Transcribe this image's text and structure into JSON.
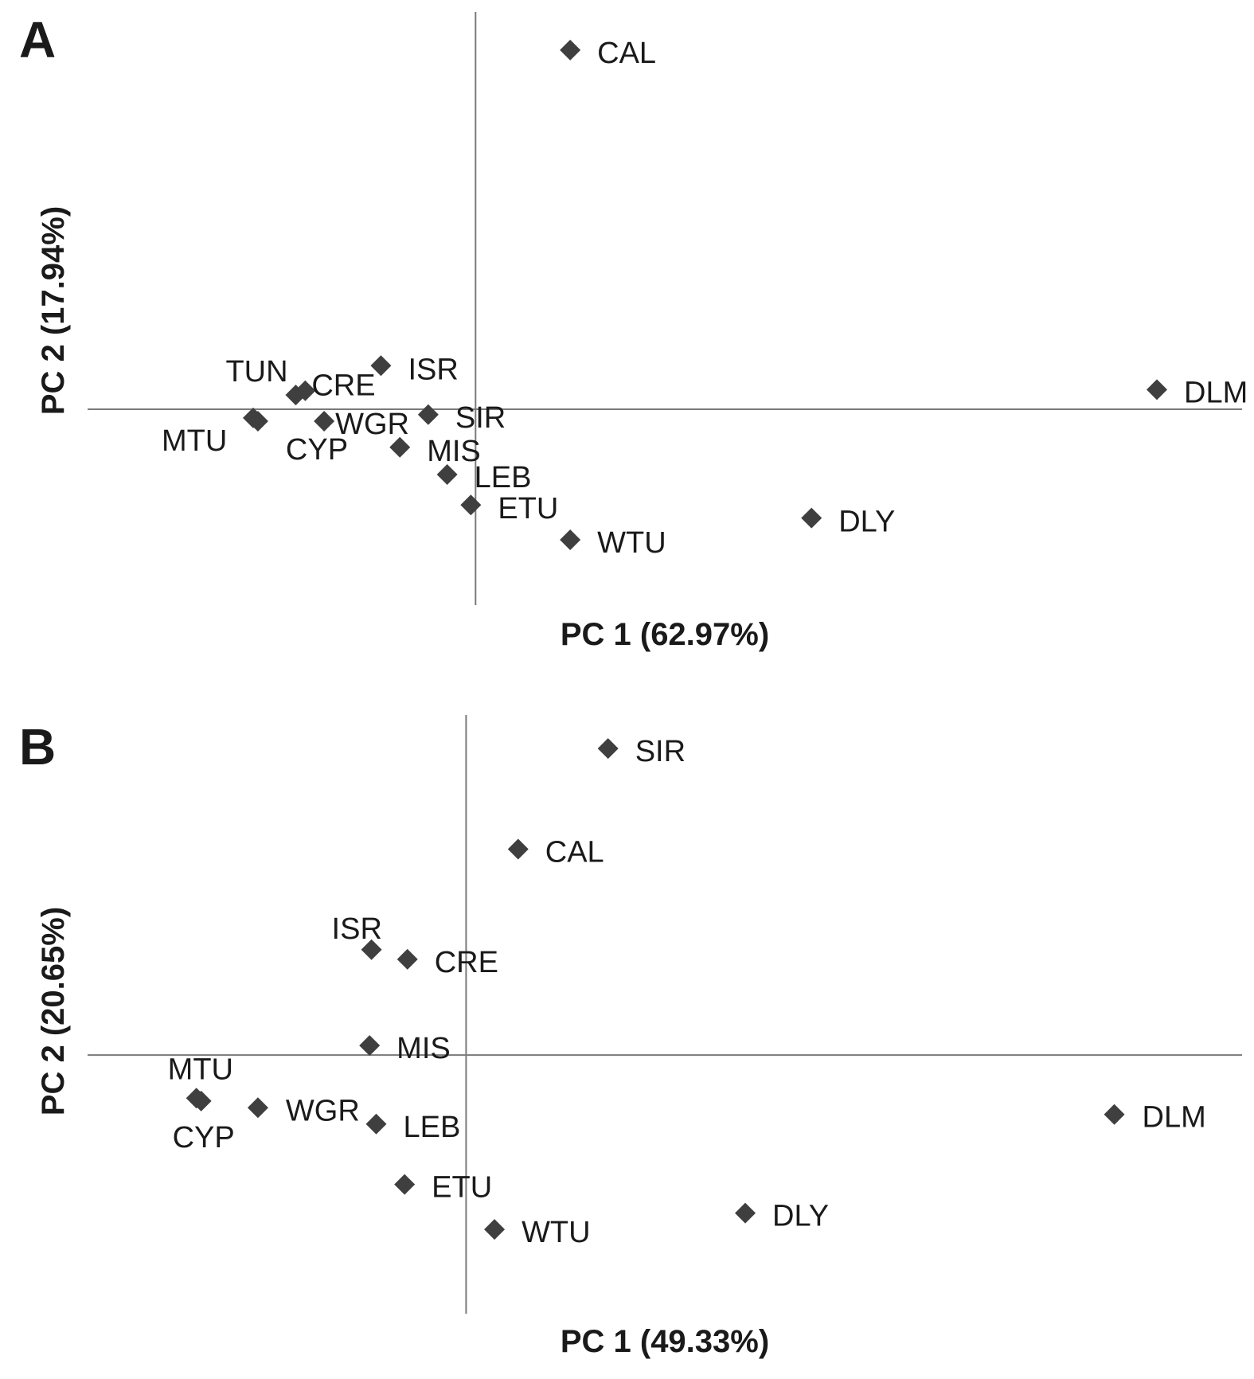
{
  "chart_data": [
    {
      "type": "scatter",
      "panel": "A",
      "xlabel": "PC 1 (62.97%)",
      "ylabel": "PC 2 (17.94%)",
      "legend": "none",
      "grid": false,
      "xlim": [
        -4.1,
        8.1
      ],
      "ylim": [
        -1.8,
        3.65
      ],
      "points": [
        {
          "label": "CAL",
          "x": 1.0,
          "y": 3.3
        },
        {
          "label": "DLM",
          "x": 7.2,
          "y": 0.18
        },
        {
          "label": "ISR",
          "x": -1.0,
          "y": 0.4
        },
        {
          "label": "TUN",
          "x": -1.9,
          "y": 0.13
        },
        {
          "label": "CRE",
          "x": -1.8,
          "y": 0.17
        },
        {
          "label": "MTU",
          "x": -2.35,
          "y": -0.08
        },
        {
          "label": "CYP",
          "x": -2.3,
          "y": -0.11
        },
        {
          "label": "WGR",
          "x": -1.6,
          "y": -0.11
        },
        {
          "label": "SIR",
          "x": -0.5,
          "y": -0.05
        },
        {
          "label": "MIS",
          "x": -0.8,
          "y": -0.35
        },
        {
          "label": "LEB",
          "x": -0.3,
          "y": -0.6
        },
        {
          "label": "ETU",
          "x": -0.05,
          "y": -0.88
        },
        {
          "label": "WTU",
          "x": 1.0,
          "y": -1.2
        },
        {
          "label": "DLY",
          "x": 3.55,
          "y": -1.0
        }
      ]
    },
    {
      "type": "scatter",
      "panel": "B",
      "xlabel": "PC 1 (49.33%)",
      "ylabel": "PC 2 (20.65%)",
      "legend": "none",
      "grid": false,
      "xlim": [
        -4.0,
        8.2
      ],
      "ylim": [
        -2.7,
        3.55
      ],
      "points": [
        {
          "label": "SIR",
          "x": 1.5,
          "y": 3.2
        },
        {
          "label": "CAL",
          "x": 0.55,
          "y": 2.15
        },
        {
          "label": "ISR",
          "x": -1.0,
          "y": 1.1
        },
        {
          "label": "CRE",
          "x": -0.62,
          "y": 1.0
        },
        {
          "label": "MIS",
          "x": -1.02,
          "y": 0.1
        },
        {
          "label": "MTU",
          "x": -2.85,
          "y": -0.45
        },
        {
          "label": "CYP",
          "x": -2.8,
          "y": -0.48
        },
        {
          "label": "WGR",
          "x": -2.2,
          "y": -0.55
        },
        {
          "label": "LEB",
          "x": -0.95,
          "y": -0.72
        },
        {
          "label": "DLM",
          "x": 6.85,
          "y": -0.62
        },
        {
          "label": "ETU",
          "x": -0.65,
          "y": -1.35
        },
        {
          "label": "DLY",
          "x": 2.95,
          "y": -1.65
        },
        {
          "label": "WTU",
          "x": 0.3,
          "y": -1.82
        }
      ]
    }
  ]
}
